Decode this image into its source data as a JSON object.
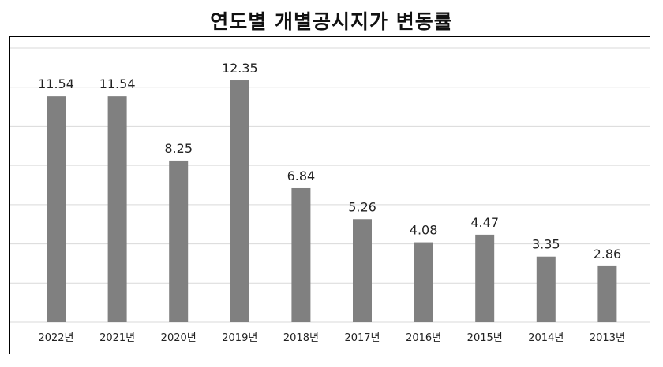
{
  "chart_data": {
    "type": "bar",
    "title": "연도별 개별공시지가 변동률",
    "categories": [
      "2022년",
      "2021년",
      "2020년",
      "2019년",
      "2018년",
      "2017년",
      "2016년",
      "2015년",
      "2014년",
      "2013년"
    ],
    "values": [
      11.54,
      11.54,
      8.25,
      12.35,
      6.84,
      5.26,
      4.08,
      4.47,
      3.35,
      2.86
    ],
    "value_labels": [
      "11.54",
      "11.54",
      "8.25",
      "12.35",
      "6.84",
      "5.26",
      "4.08",
      "4.47",
      "3.35",
      "2.86"
    ],
    "ylim": [
      0,
      14
    ],
    "grid": true,
    "legend": "none",
    "bar_color": "#808080",
    "highlight_index": 0,
    "highlight_label_color": "#1a1acc",
    "label_color": "#222222",
    "grid_color": "#d9d9d9"
  }
}
